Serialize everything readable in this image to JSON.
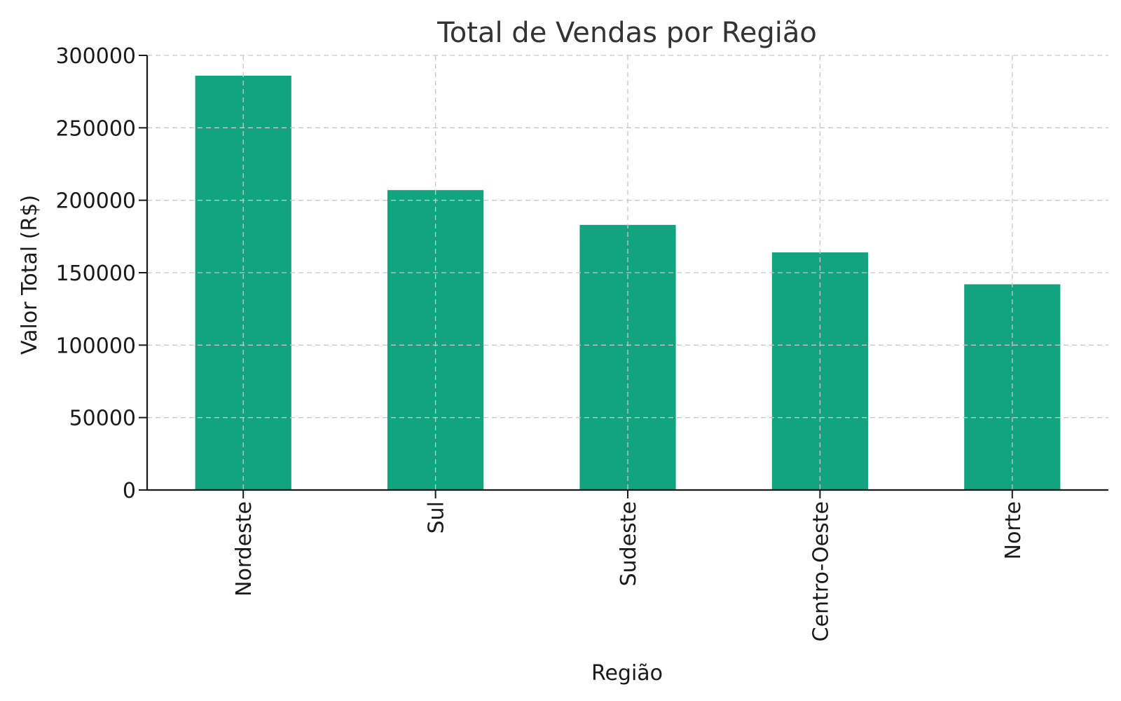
{
  "chart_data": {
    "type": "bar",
    "title": "Total de Vendas por Região",
    "xlabel": "Região",
    "ylabel": "Valor Total (R$)",
    "categories": [
      "Nordeste",
      "Sul",
      "Sudeste",
      "Centro-Oeste",
      "Norte"
    ],
    "values": [
      286000,
      207000,
      183000,
      164000,
      142000
    ],
    "ylim": [
      0,
      300000
    ],
    "yticks": [
      0,
      50000,
      100000,
      150000,
      200000,
      250000,
      300000
    ],
    "ytick_labels": [
      "0",
      "50000",
      "100000",
      "150000",
      "200000",
      "250000",
      "300000"
    ],
    "grid": true,
    "legend": "none",
    "bar_color": "#12a37f"
  }
}
